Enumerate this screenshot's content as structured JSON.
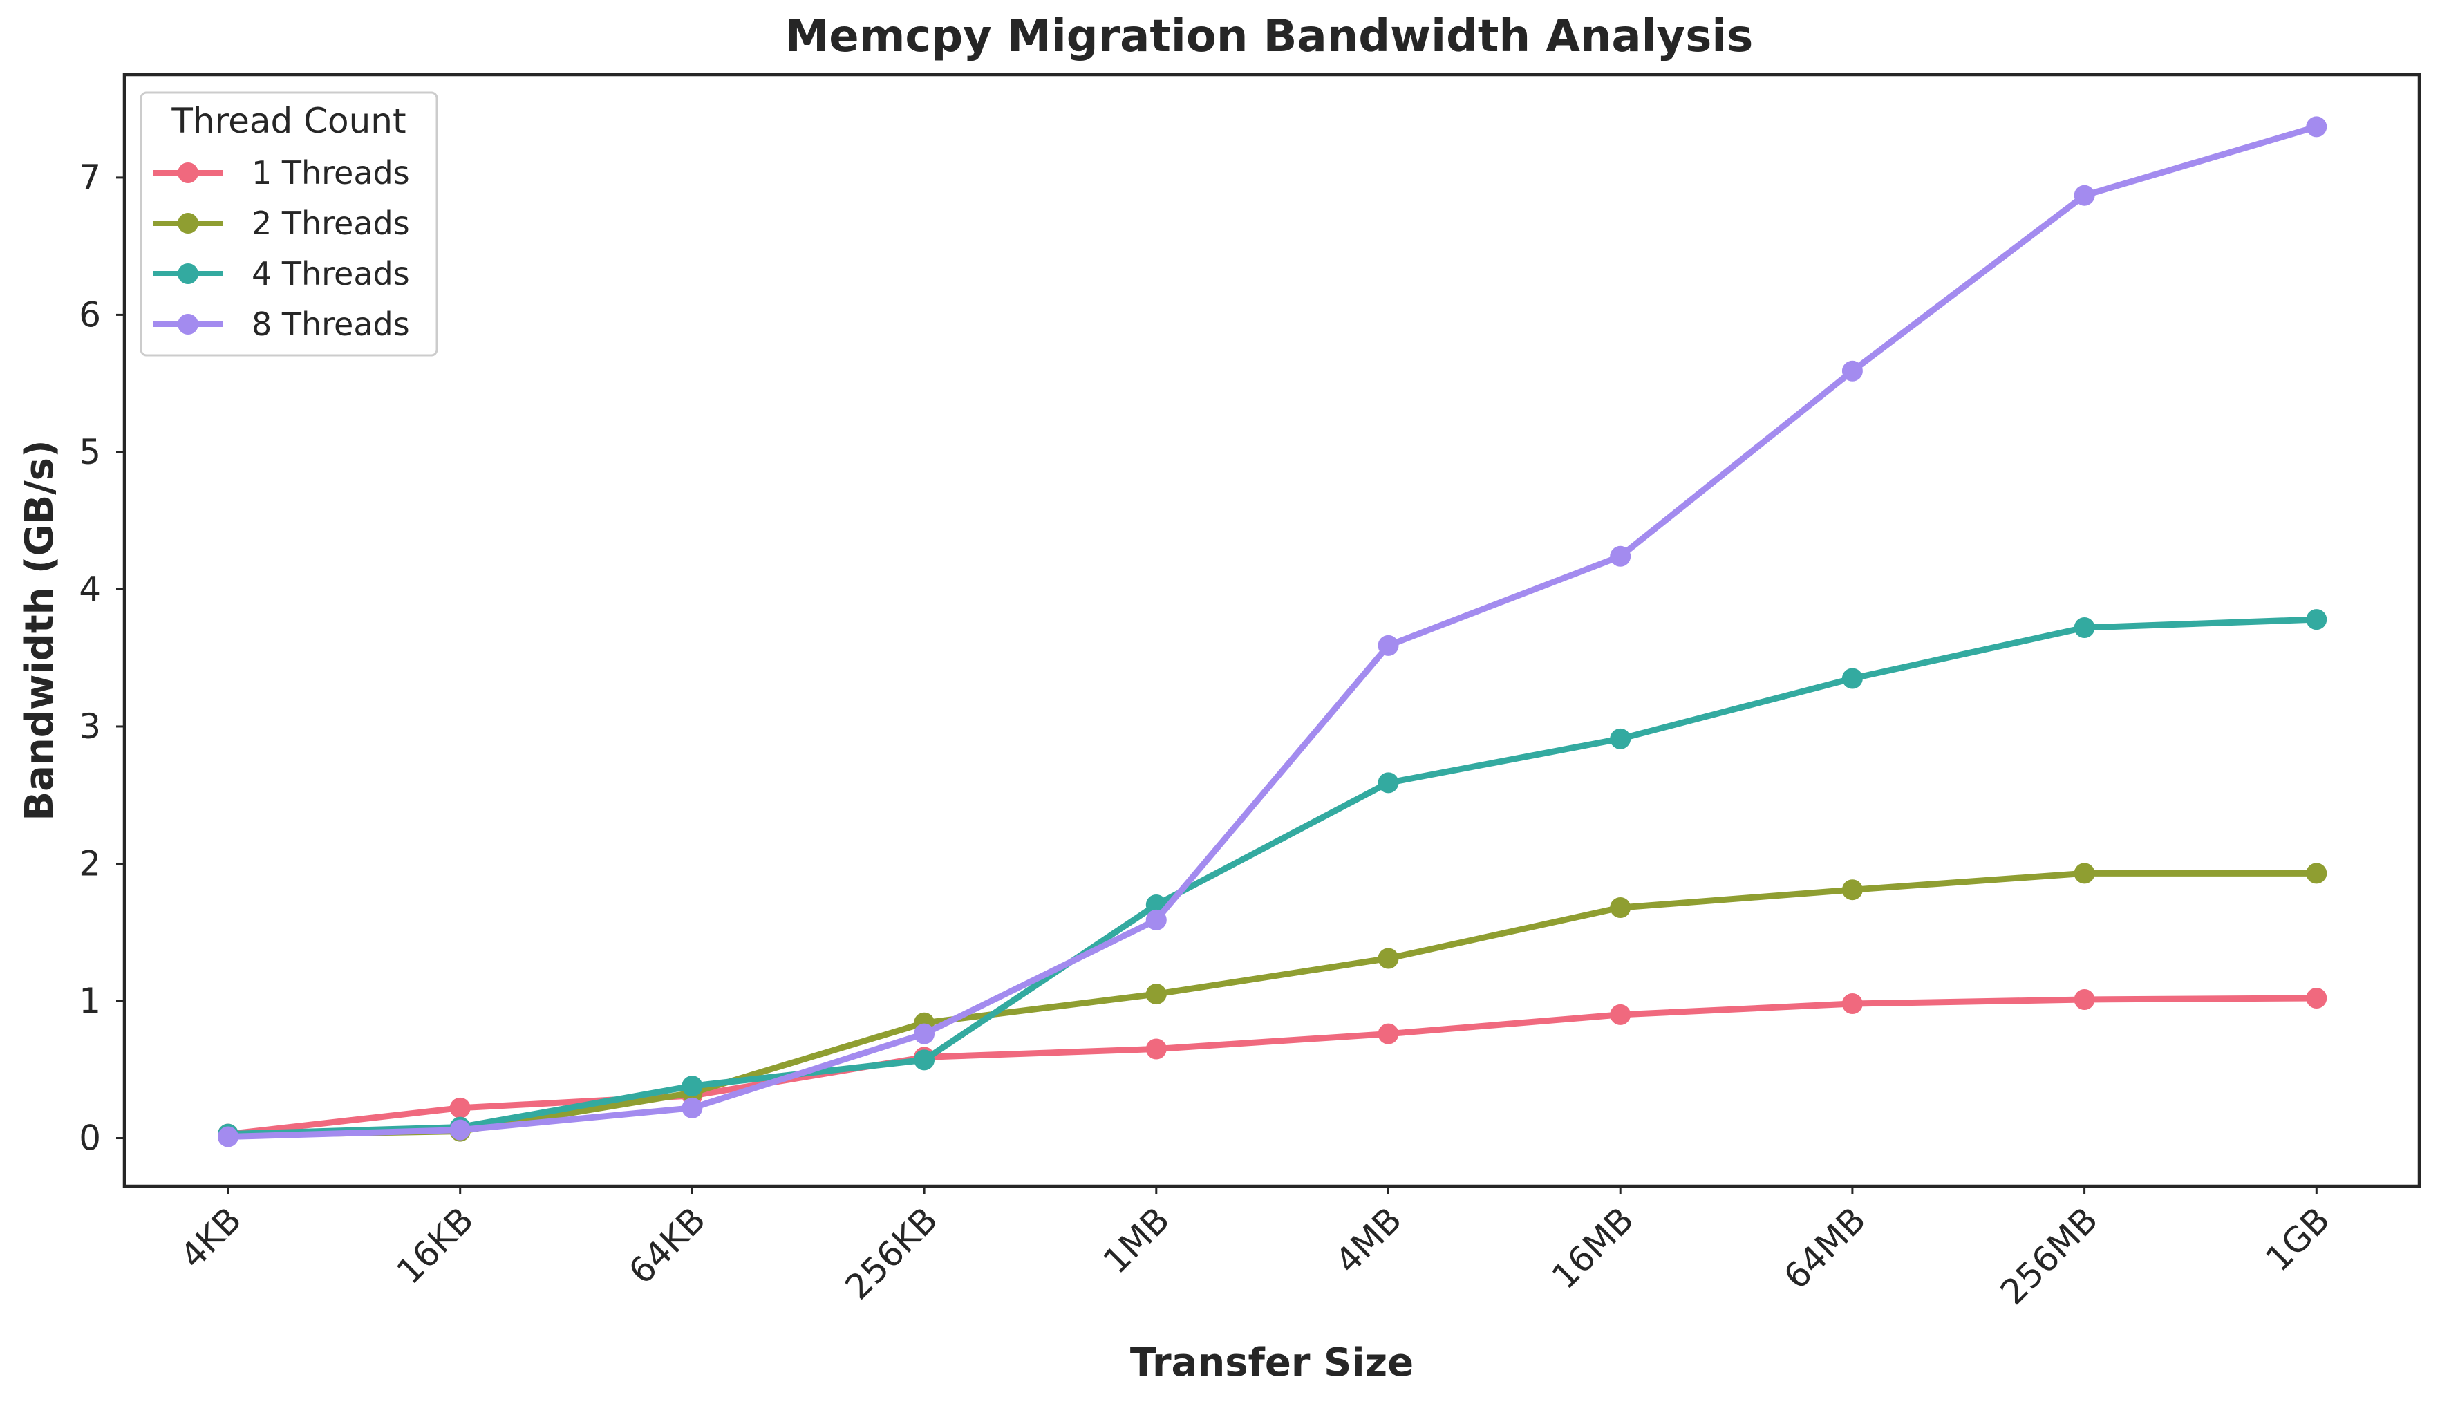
{
  "chart_data": {
    "type": "line",
    "title": "Memcpy Migration Bandwidth Analysis",
    "xlabel": "Transfer Size",
    "ylabel": "Bandwidth (GB/s)",
    "categories": [
      "4KB",
      "16KB",
      "64KB",
      "256KB",
      "1MB",
      "4MB",
      "16MB",
      "64MB",
      "256MB",
      "1GB"
    ],
    "ylim": [
      -0.35,
      7.75
    ],
    "yticks": [
      0,
      1,
      2,
      3,
      4,
      5,
      6,
      7
    ],
    "grid": false,
    "legend": {
      "title": "Thread Count",
      "placement": "top-left"
    },
    "series": [
      {
        "name": "1 Threads",
        "color": "#f0697e",
        "values": [
          0.03,
          0.22,
          0.31,
          0.59,
          0.65,
          0.76,
          0.9,
          0.98,
          1.01,
          1.02
        ]
      },
      {
        "name": "2 Threads",
        "color": "#8f9e31",
        "values": [
          0.02,
          0.05,
          0.33,
          0.84,
          1.05,
          1.31,
          1.68,
          1.81,
          1.93,
          1.93
        ]
      },
      {
        "name": "4 Threads",
        "color": "#33aaa0",
        "values": [
          0.03,
          0.08,
          0.38,
          0.57,
          1.7,
          2.59,
          2.91,
          3.35,
          3.72,
          3.78
        ]
      },
      {
        "name": "8 Threads",
        "color": "#a38bef",
        "values": [
          0.01,
          0.06,
          0.22,
          0.76,
          1.59,
          3.59,
          4.24,
          5.59,
          6.87,
          7.37
        ]
      }
    ]
  }
}
